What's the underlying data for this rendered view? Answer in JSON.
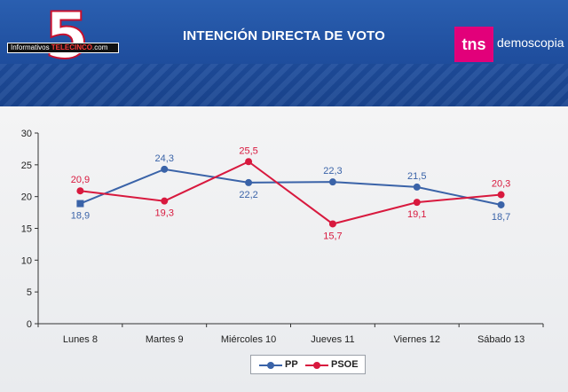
{
  "header": {
    "title": "INTENCIÓN DIRECTA DE VOTO",
    "logo_left_pre": "Informativos ",
    "logo_left_brand": "TELECINCO",
    "logo_left_post": ".com",
    "logo_five": "5",
    "logo_right_box": "tns",
    "logo_right_text": "demoscopia"
  },
  "colors": {
    "pp": "#3a63a8",
    "psoe": "#d8193e",
    "header_bg": "#2a5fb0"
  },
  "chart_data": {
    "type": "line",
    "title": "INTENCIÓN DIRECTA DE VOTO",
    "categories": [
      "Lunes 8",
      "Martes 9",
      "Miércoles 10",
      "Jueves 11",
      "Viernes 12",
      "Sábado 13"
    ],
    "series": [
      {
        "name": "PP",
        "values": [
          18.9,
          24.3,
          22.2,
          22.3,
          21.5,
          18.7
        ],
        "labels": [
          "18,9",
          "24,3",
          "22,2",
          "22,3",
          "21,5",
          "18,7"
        ]
      },
      {
        "name": "PSOE",
        "values": [
          20.9,
          19.3,
          25.5,
          15.7,
          19.1,
          20.3
        ],
        "labels": [
          "20,9",
          "19,3",
          "25,5",
          "15,7",
          "19,1",
          "20,3"
        ]
      }
    ],
    "ylim": [
      0,
      30
    ],
    "yticks": [
      0,
      5,
      10,
      15,
      20,
      25,
      30
    ],
    "grid": false,
    "legend": "bottom"
  }
}
